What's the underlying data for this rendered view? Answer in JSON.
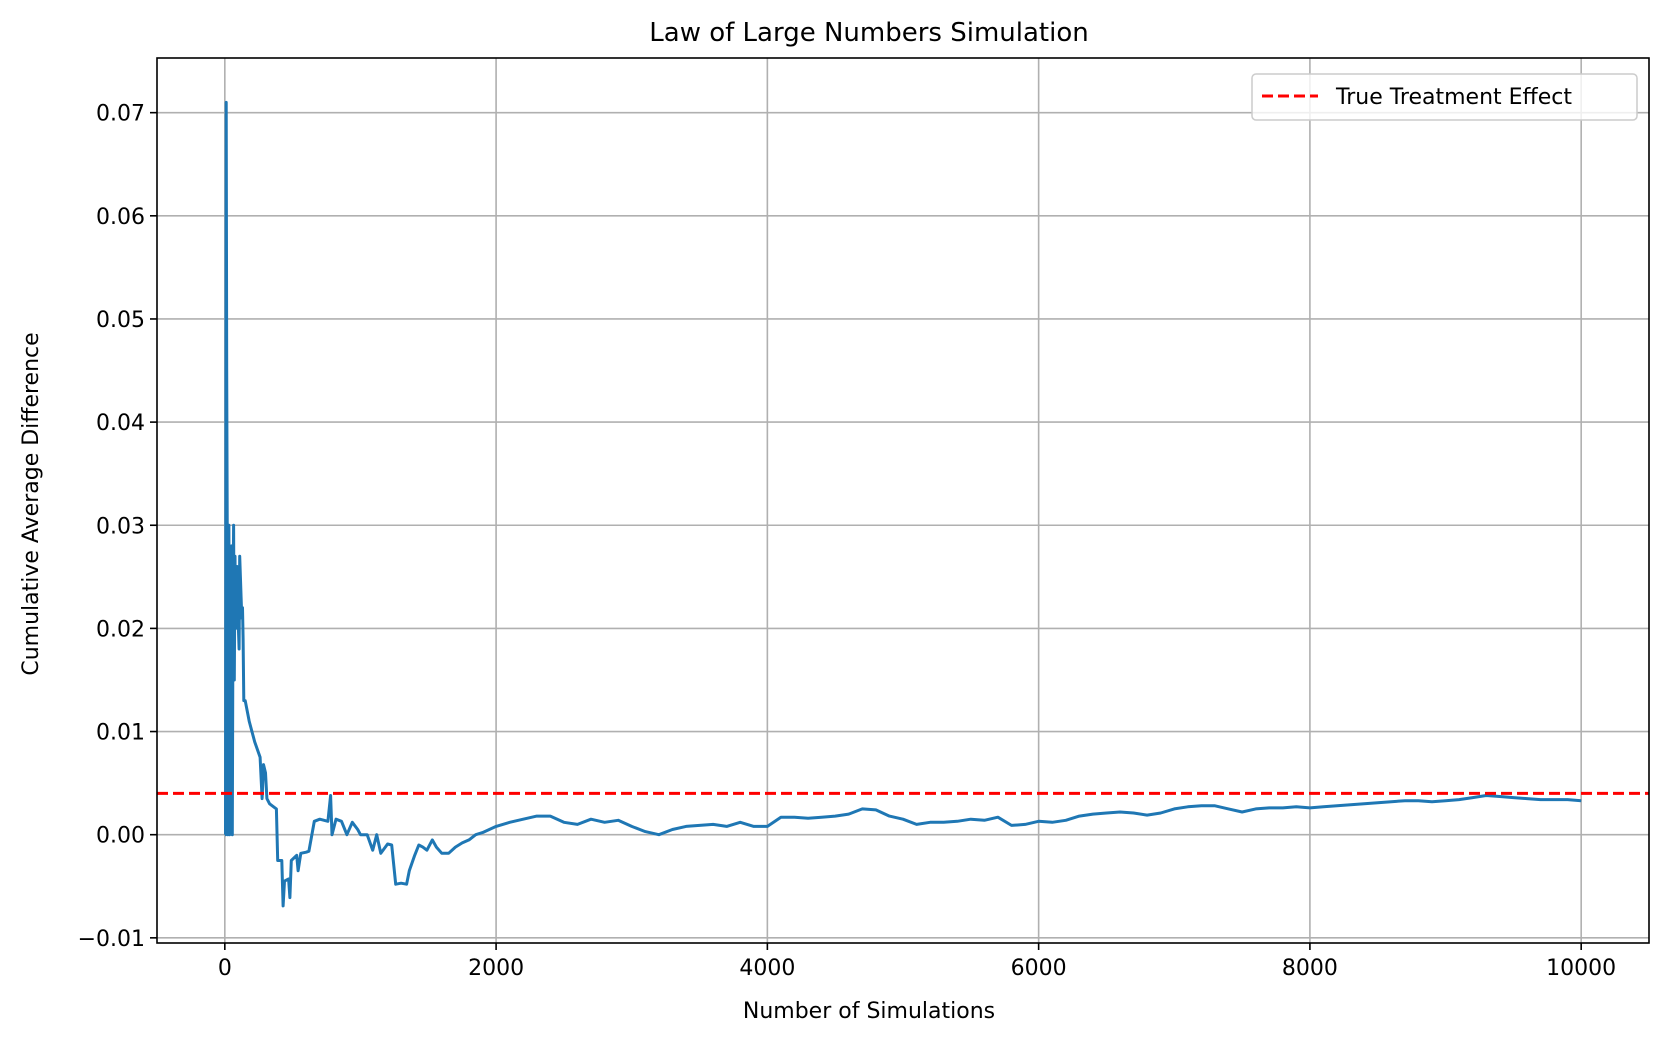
{
  "chart_data": {
    "type": "line",
    "title": "Law of Large Numbers Simulation",
    "xlabel": "Number of Simulations",
    "ylabel": "Cumulative Average Difference",
    "xlim": [
      -500,
      10500
    ],
    "ylim": [
      -0.0105,
      0.0753
    ],
    "xticks": [
      0,
      2000,
      4000,
      6000,
      8000,
      10000
    ],
    "xtick_labels": [
      "0",
      "2000",
      "4000",
      "6000",
      "8000",
      "10000"
    ],
    "yticks": [
      -0.01,
      0.0,
      0.01,
      0.02,
      0.03,
      0.04,
      0.05,
      0.06,
      0.07
    ],
    "ytick_labels": [
      "−0.01",
      "0.00",
      "0.01",
      "0.02",
      "0.03",
      "0.04",
      "0.05",
      "0.06",
      "0.07"
    ],
    "grid": true,
    "legend": {
      "position": "top-right",
      "entries": [
        "True Treatment Effect"
      ]
    },
    "colors": {
      "series": "#1f77b4",
      "reference": "#ff0000",
      "grid": "#b0b0b0"
    },
    "reference_line": {
      "name": "True Treatment Effect",
      "y": 0.004,
      "style": "dashed"
    },
    "series": [
      {
        "values": [
          [
            1,
            0.0
          ],
          [
            5,
            0.0
          ],
          [
            10,
            0.071
          ],
          [
            14,
            0.045
          ],
          [
            18,
            0.028
          ],
          [
            22,
            0.0
          ],
          [
            26,
            0.019
          ],
          [
            30,
            0.03
          ],
          [
            35,
            0.0
          ],
          [
            40,
            0.022
          ],
          [
            45,
            0.012
          ],
          [
            50,
            0.028
          ],
          [
            55,
            0.0
          ],
          [
            60,
            0.022
          ],
          [
            65,
            0.03
          ],
          [
            70,
            0.015
          ],
          [
            75,
            0.027
          ],
          [
            80,
            0.02
          ],
          [
            85,
            0.024
          ],
          [
            90,
            0.026
          ],
          [
            95,
            0.022
          ],
          [
            100,
            0.02
          ],
          [
            105,
            0.018
          ],
          [
            110,
            0.027
          ],
          [
            115,
            0.025
          ],
          [
            120,
            0.023
          ],
          [
            125,
            0.021
          ],
          [
            130,
            0.022
          ],
          [
            135,
            0.019
          ],
          [
            140,
            0.013
          ],
          [
            150,
            0.013
          ],
          [
            180,
            0.011
          ],
          [
            220,
            0.009
          ],
          [
            260,
            0.0075
          ],
          [
            275,
            0.0035
          ],
          [
            285,
            0.0068
          ],
          [
            300,
            0.006
          ],
          [
            310,
            0.0035
          ],
          [
            330,
            0.003
          ],
          [
            380,
            0.0025
          ],
          [
            390,
            -0.0025
          ],
          [
            420,
            -0.0025
          ],
          [
            430,
            -0.0069
          ],
          [
            440,
            -0.0045
          ],
          [
            470,
            -0.0043
          ],
          [
            480,
            -0.0061
          ],
          [
            490,
            -0.0025
          ],
          [
            530,
            -0.002
          ],
          [
            540,
            -0.0035
          ],
          [
            560,
            -0.0018
          ],
          [
            600,
            -0.0017
          ],
          [
            620,
            -0.0016
          ],
          [
            660,
            0.0013
          ],
          [
            700,
            0.0015
          ],
          [
            760,
            0.0013
          ],
          [
            780,
            0.0038
          ],
          [
            790,
            0.0
          ],
          [
            820,
            0.0015
          ],
          [
            860,
            0.0013
          ],
          [
            900,
            0.0
          ],
          [
            940,
            0.0012
          ],
          [
            980,
            0.0005
          ],
          [
            1000,
            0.0
          ],
          [
            1050,
            0.0
          ],
          [
            1090,
            -0.0015
          ],
          [
            1120,
            0.0
          ],
          [
            1150,
            -0.0018
          ],
          [
            1200,
            -0.0009
          ],
          [
            1230,
            -0.001
          ],
          [
            1260,
            -0.0048
          ],
          [
            1300,
            -0.0047
          ],
          [
            1340,
            -0.0048
          ],
          [
            1360,
            -0.0035
          ],
          [
            1400,
            -0.002
          ],
          [
            1430,
            -0.001
          ],
          [
            1460,
            -0.0012
          ],
          [
            1490,
            -0.0015
          ],
          [
            1530,
            -0.0005
          ],
          [
            1560,
            -0.0012
          ],
          [
            1600,
            -0.0018
          ],
          [
            1650,
            -0.0018
          ],
          [
            1700,
            -0.0012
          ],
          [
            1750,
            -0.0008
          ],
          [
            1800,
            -0.0005
          ],
          [
            1850,
            0.0
          ],
          [
            1900,
            0.0002
          ],
          [
            1950,
            0.0005
          ],
          [
            2000,
            0.0008
          ],
          [
            2100,
            0.0012
          ],
          [
            2200,
            0.0015
          ],
          [
            2300,
            0.0018
          ],
          [
            2400,
            0.0018
          ],
          [
            2500,
            0.0012
          ],
          [
            2600,
            0.001
          ],
          [
            2700,
            0.0015
          ],
          [
            2800,
            0.0012
          ],
          [
            2900,
            0.0014
          ],
          [
            3000,
            0.0008
          ],
          [
            3100,
            0.0003
          ],
          [
            3200,
            0.0
          ],
          [
            3300,
            0.0005
          ],
          [
            3400,
            0.0008
          ],
          [
            3500,
            0.0009
          ],
          [
            3600,
            0.001
          ],
          [
            3700,
            0.0008
          ],
          [
            3800,
            0.0012
          ],
          [
            3900,
            0.0008
          ],
          [
            4000,
            0.0008
          ],
          [
            4100,
            0.0017
          ],
          [
            4200,
            0.0017
          ],
          [
            4300,
            0.0016
          ],
          [
            4400,
            0.0017
          ],
          [
            4500,
            0.0018
          ],
          [
            4600,
            0.002
          ],
          [
            4700,
            0.0025
          ],
          [
            4800,
            0.0024
          ],
          [
            4900,
            0.0018
          ],
          [
            5000,
            0.0015
          ],
          [
            5100,
            0.001
          ],
          [
            5200,
            0.0012
          ],
          [
            5300,
            0.0012
          ],
          [
            5400,
            0.0013
          ],
          [
            5500,
            0.0015
          ],
          [
            5600,
            0.0014
          ],
          [
            5700,
            0.0017
          ],
          [
            5800,
            0.0009
          ],
          [
            5900,
            0.001
          ],
          [
            6000,
            0.0013
          ],
          [
            6100,
            0.0012
          ],
          [
            6200,
            0.0014
          ],
          [
            6300,
            0.0018
          ],
          [
            6400,
            0.002
          ],
          [
            6500,
            0.0021
          ],
          [
            6600,
            0.0022
          ],
          [
            6700,
            0.0021
          ],
          [
            6800,
            0.0019
          ],
          [
            6900,
            0.0021
          ],
          [
            7000,
            0.0025
          ],
          [
            7100,
            0.0027
          ],
          [
            7200,
            0.0028
          ],
          [
            7300,
            0.0028
          ],
          [
            7400,
            0.0025
          ],
          [
            7500,
            0.0022
          ],
          [
            7600,
            0.0025
          ],
          [
            7700,
            0.0026
          ],
          [
            7800,
            0.0026
          ],
          [
            7900,
            0.0027
          ],
          [
            8000,
            0.0026
          ],
          [
            8100,
            0.0027
          ],
          [
            8200,
            0.0028
          ],
          [
            8300,
            0.0029
          ],
          [
            8400,
            0.003
          ],
          [
            8500,
            0.0031
          ],
          [
            8600,
            0.0032
          ],
          [
            8700,
            0.0033
          ],
          [
            8800,
            0.0033
          ],
          [
            8900,
            0.0032
          ],
          [
            9000,
            0.0033
          ],
          [
            9100,
            0.0034
          ],
          [
            9200,
            0.0036
          ],
          [
            9300,
            0.0038
          ],
          [
            9400,
            0.0037
          ],
          [
            9500,
            0.0036
          ],
          [
            9600,
            0.0035
          ],
          [
            9700,
            0.0034
          ],
          [
            9800,
            0.0034
          ],
          [
            9900,
            0.0034
          ],
          [
            10000,
            0.0033
          ]
        ]
      }
    ]
  }
}
